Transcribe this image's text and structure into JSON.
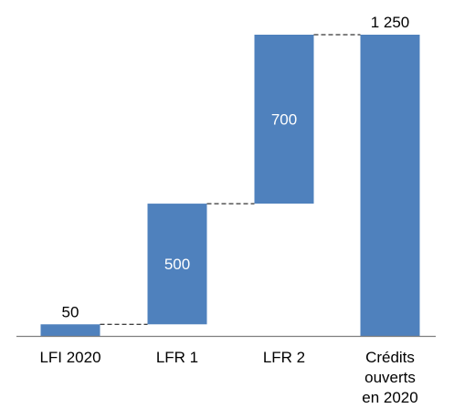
{
  "chart_data": {
    "type": "bar",
    "subtype": "waterfall",
    "categories": [
      [
        "LFI 2020"
      ],
      [
        "LFR 1"
      ],
      [
        "LFR 2"
      ],
      [
        "Crédits",
        "ouverts",
        "en 2020"
      ]
    ],
    "steps": [
      {
        "value": 50,
        "label": "50",
        "kind": "base"
      },
      {
        "value": 500,
        "label": "500",
        "kind": "increase"
      },
      {
        "value": 700,
        "label": "700",
        "kind": "increase"
      },
      {
        "value": 1250,
        "label": "1 250",
        "kind": "total"
      }
    ],
    "ylim": [
      0,
      1250
    ],
    "grid": false,
    "legend": "none",
    "colors": {
      "bar": "#4f81bd",
      "axis": "#7f7f7f",
      "connector": "#000000"
    }
  }
}
